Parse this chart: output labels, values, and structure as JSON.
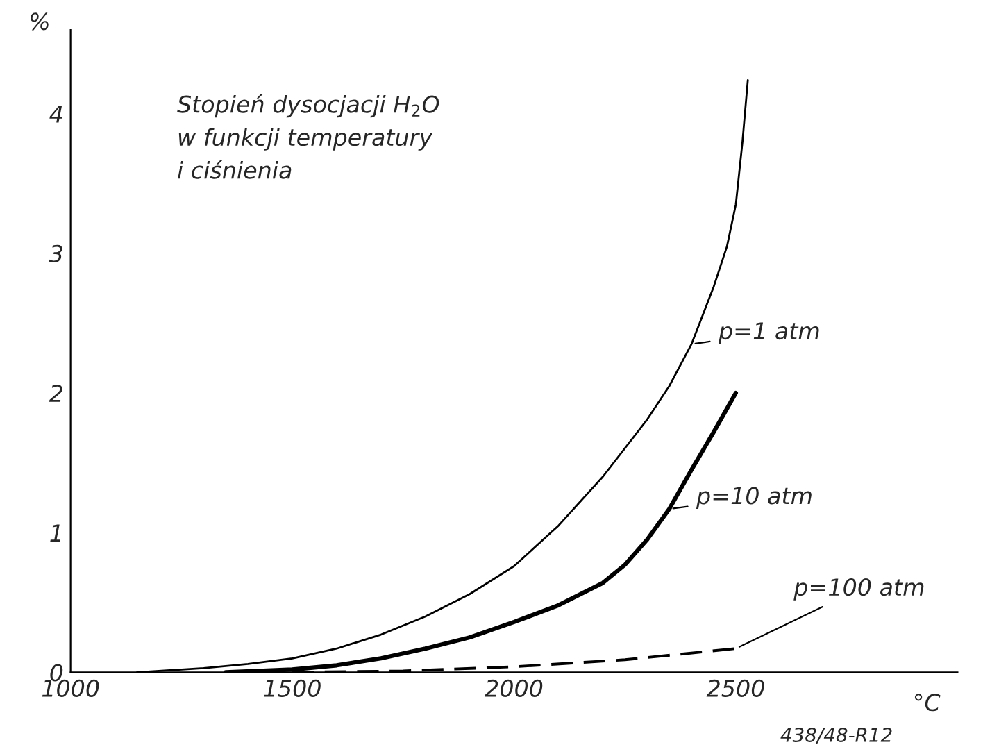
{
  "chart_data": {
    "type": "line",
    "title": "Stopień dysocjacji H$_{2}$O\nw funkcji temperatury\ni ciśnienia",
    "xlabel": "°C",
    "ylabel": "%",
    "xlim": [
      1000,
      3000
    ],
    "xticks": [
      1000,
      1500,
      2000,
      2500
    ],
    "ylim": [
      0,
      4.6
    ],
    "yticks": [
      0,
      1,
      2,
      3,
      4
    ],
    "grid": false,
    "legend": false,
    "marker": "none",
    "series": [
      {
        "color": "#000000",
        "line_style": "solid",
        "x": [
          1150,
          1300,
          1400,
          1500,
          1600,
          1700,
          1800,
          1900,
          2000,
          2100,
          2200,
          2300,
          2350,
          2400,
          2450,
          2480,
          2500,
          2515,
          2527
        ],
        "values": [
          0,
          0.03,
          0.06,
          0.1,
          0.17,
          0.27,
          0.4,
          0.56,
          0.76,
          1.05,
          1.4,
          1.81,
          2.05,
          2.35,
          2.76,
          3.05,
          3.35,
          3.8,
          4.24
        ]
      },
      {
        "color": "#000000",
        "line_style": "solid",
        "x": [
          1350,
          1500,
          1600,
          1700,
          1800,
          1900,
          2000,
          2100,
          2200,
          2250,
          2300,
          2350,
          2400,
          2450,
          2500
        ],
        "values": [
          0,
          0.02,
          0.05,
          0.1,
          0.17,
          0.25,
          0.36,
          0.48,
          0.64,
          0.77,
          0.95,
          1.17,
          1.45,
          1.72,
          2.0
        ]
      },
      {
        "color": "#000000",
        "line_style": "dashed",
        "x": [
          1500,
          1750,
          2000,
          2250,
          2500
        ],
        "values": [
          0,
          0.01,
          0.04,
          0.09,
          0.17
        ]
      }
    ],
    "annotations": [
      {
        "text": "p=1 atm",
        "x": 2400,
        "y": 2.35
      },
      {
        "text": "p=10 atm",
        "x": 2350,
        "y": 1.17
      },
      {
        "text": "p=100 atm",
        "x": 2500,
        "y": 0.17
      },
      "438/48-R12"
    ]
  }
}
